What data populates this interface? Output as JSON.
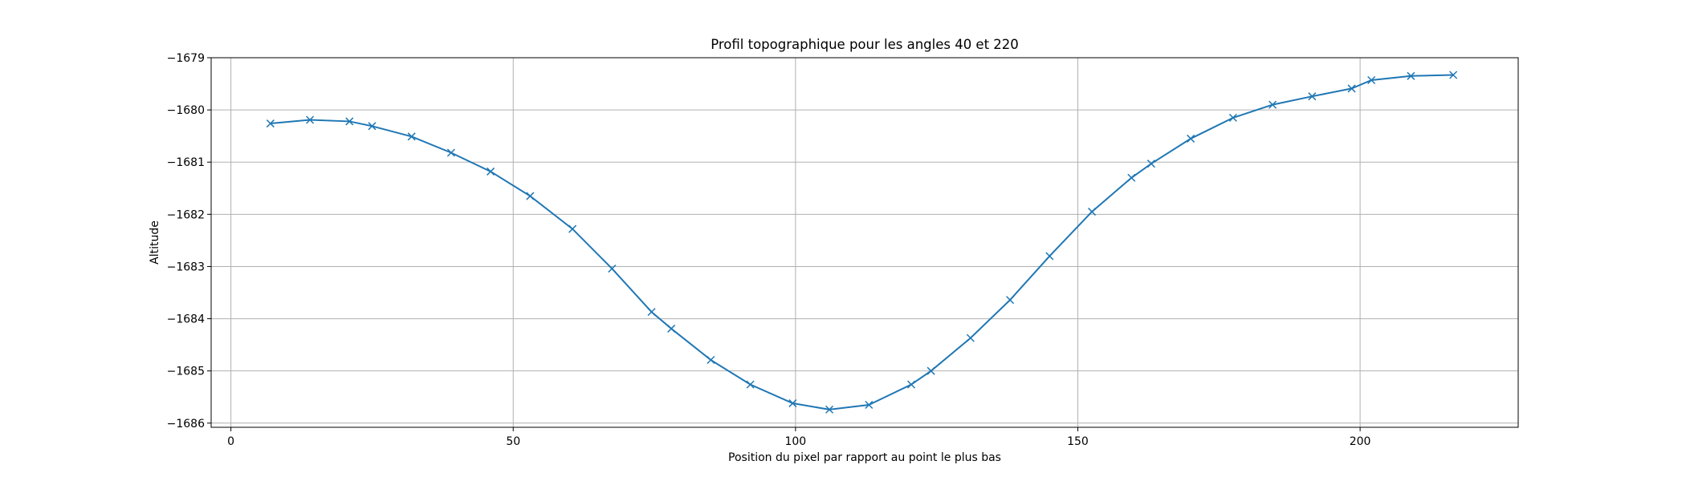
{
  "chart_data": {
    "type": "line",
    "title": "Profil topographique pour les angles 40 et 220",
    "xlabel": "Position du pixel par rapport au point le plus bas",
    "ylabel": "Altitude",
    "xlim": [
      -3.5,
      228
    ],
    "ylim": [
      -1686.08,
      -1679
    ],
    "xticks": [
      0,
      50,
      100,
      150,
      200
    ],
    "yticks": [
      -1679,
      -1680,
      -1681,
      -1682,
      -1683,
      -1684,
      -1685,
      -1686
    ],
    "grid": true,
    "marker": "x",
    "line_color": "#1f77b4",
    "series": [
      {
        "x": [
          7,
          14,
          21,
          25,
          32,
          39,
          46,
          53,
          60.5,
          67.5,
          74.5,
          78,
          85,
          92,
          99.5,
          106,
          113,
          120.5,
          124,
          131,
          138,
          145,
          152.5,
          159.5,
          163,
          170,
          177.5,
          184.5,
          191.5,
          198.5,
          202,
          209,
          216.5
        ],
        "y": [
          -1680.26,
          -1680.19,
          -1680.22,
          -1680.31,
          -1680.51,
          -1680.82,
          -1681.18,
          -1681.65,
          -1682.28,
          -1683.04,
          -1683.87,
          -1684.19,
          -1684.79,
          -1685.26,
          -1685.62,
          -1685.74,
          -1685.65,
          -1685.26,
          -1685.0,
          -1684.37,
          -1683.64,
          -1682.8,
          -1681.95,
          -1681.3,
          -1681.03,
          -1680.55,
          -1680.15,
          -1679.9,
          -1679.74,
          -1679.59,
          -1679.43,
          -1679.35,
          -1679.33
        ]
      }
    ]
  }
}
